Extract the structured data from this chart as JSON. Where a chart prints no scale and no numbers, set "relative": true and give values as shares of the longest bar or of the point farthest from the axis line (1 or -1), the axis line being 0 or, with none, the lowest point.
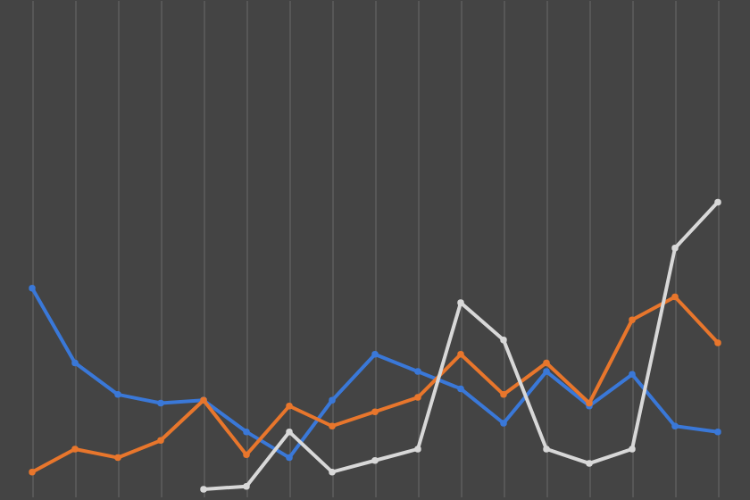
{
  "chart_data": {
    "type": "line",
    "relative": true,
    "categories": [
      null,
      null,
      null,
      null,
      null,
      null,
      null,
      null,
      null,
      null,
      null,
      null,
      null,
      null,
      null,
      null,
      null
    ],
    "series": [
      {
        "color": "#3a78d8",
        "values": [
          0.7,
          0.44,
          0.33,
          0.3,
          0.31,
          0.2,
          0.11,
          0.31,
          0.47,
          0.41,
          0.35,
          0.23,
          0.41,
          0.29,
          0.4,
          0.22,
          0.2
        ]
      },
      {
        "color": "#e8762c",
        "values": [
          0.06,
          0.14,
          0.11,
          0.17,
          0.31,
          0.12,
          0.29,
          0.22,
          0.27,
          0.32,
          0.47,
          0.33,
          0.44,
          0.3,
          0.59,
          0.67,
          0.51
        ]
      },
      {
        "color": "#d8d8d8",
        "values": [
          null,
          null,
          null,
          null,
          0,
          0.01,
          0.2,
          0.06,
          0.1,
          0.14,
          0.65,
          0.52,
          0.14,
          0.09,
          0.14,
          0.84,
          1
        ]
      }
    ],
    "marker": "circle",
    "line_style": "solid",
    "grid": "x"
  }
}
